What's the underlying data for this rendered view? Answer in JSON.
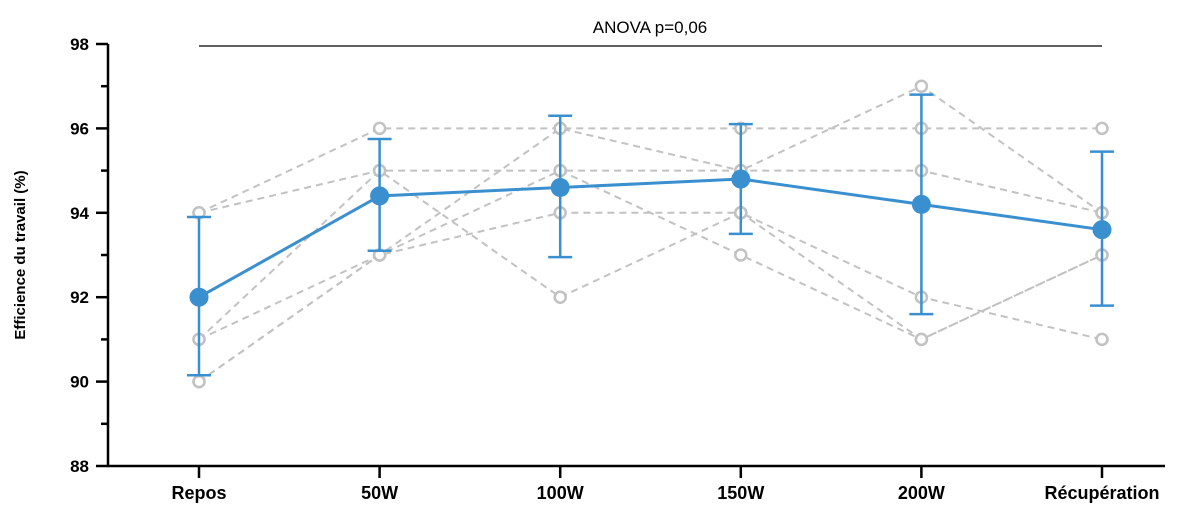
{
  "chart_data": {
    "type": "line",
    "title": "",
    "xlabel": "",
    "ylabel": "Efficience du travail (%)",
    "categories": [
      "Repos",
      "50W",
      "100W",
      "150W",
      "200W",
      "Récupération"
    ],
    "ylim": [
      88,
      98
    ],
    "yticks": [
      88,
      90,
      92,
      94,
      96,
      98
    ],
    "grid": false,
    "annotation": "ANOVA p=0,06",
    "mean_series": {
      "values": [
        92.0,
        94.4,
        94.6,
        94.8,
        94.2,
        93.6
      ],
      "error_upper": [
        93.9,
        95.75,
        96.3,
        96.1,
        96.8,
        95.45
      ],
      "error_lower": [
        90.15,
        93.1,
        92.95,
        93.5,
        91.6,
        91.8
      ],
      "color": "#3a8fcf"
    },
    "individual_series": [
      {
        "values": [
          94,
          96,
          96,
          96,
          96,
          96
        ]
      },
      {
        "values": [
          94,
          95,
          95,
          95,
          97,
          94
        ]
      },
      {
        "values": [
          91,
          95,
          92,
          94,
          92,
          91
        ]
      },
      {
        "values": [
          91,
          93,
          94,
          94,
          91,
          93
        ]
      },
      {
        "values": [
          90,
          93,
          96,
          95,
          95,
          94
        ]
      },
      {
        "values": [
          90,
          93,
          95,
          93,
          91,
          93
        ]
      }
    ],
    "individual_color": "#c2c2c2"
  }
}
